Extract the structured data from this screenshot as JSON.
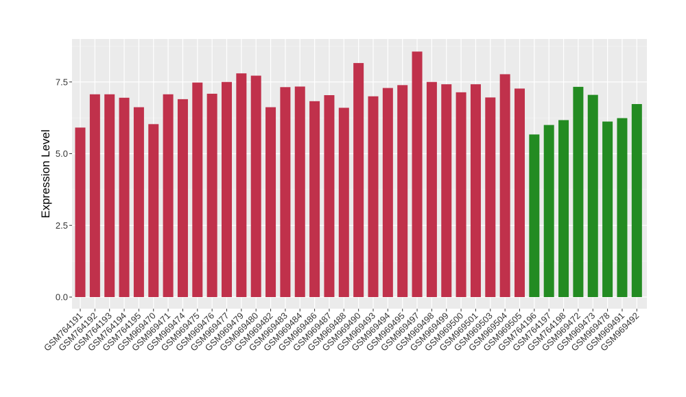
{
  "chart_data": {
    "type": "bar",
    "ylabel": "Expression Level",
    "xlabel": "",
    "ylim": [
      0,
      8.95
    ],
    "yticks": [
      0.0,
      2.5,
      5.0,
      7.5
    ],
    "ytick_labels": [
      "0.0",
      "2.5",
      "5.0",
      "7.5"
    ],
    "grid": true,
    "legend": "none",
    "colors": {
      "red": "#c0314b",
      "green": "#238b22",
      "panel": "#ebebeb",
      "grid": "#ffffff"
    },
    "categories": [
      "GSM764191",
      "GSM764192",
      "GSM764193",
      "GSM764194",
      "GSM764195",
      "GSM969470",
      "GSM969471",
      "GSM969474",
      "GSM969475",
      "GSM969476",
      "GSM969477",
      "GSM969479",
      "GSM969480",
      "GSM969482",
      "GSM969483",
      "GSM969484",
      "GSM969486",
      "GSM969487",
      "GSM969488",
      "GSM969490",
      "GSM969493",
      "GSM969494",
      "GSM969495",
      "GSM969497",
      "GSM969498",
      "GSM969499",
      "GSM969500",
      "GSM969501",
      "GSM969503",
      "GSM969504",
      "GSM969505",
      "GSM764196",
      "GSM764197",
      "GSM764198",
      "GSM969472",
      "GSM969473",
      "GSM969478",
      "GSM969491",
      "GSM969492"
    ],
    "values": [
      5.91,
      7.07,
      7.07,
      6.95,
      6.62,
      6.03,
      7.07,
      6.9,
      7.48,
      7.09,
      7.5,
      7.8,
      7.72,
      6.62,
      7.32,
      7.34,
      6.83,
      7.04,
      6.6,
      8.16,
      7.0,
      7.29,
      7.39,
      8.56,
      7.5,
      7.42,
      7.14,
      7.42,
      6.96,
      7.77,
      7.27,
      5.67,
      6.0,
      6.17,
      7.33,
      7.05,
      6.12,
      6.24,
      6.73
    ],
    "bar_colors": [
      "red",
      "red",
      "red",
      "red",
      "red",
      "red",
      "red",
      "red",
      "red",
      "red",
      "red",
      "red",
      "red",
      "red",
      "red",
      "red",
      "red",
      "red",
      "red",
      "red",
      "red",
      "red",
      "red",
      "red",
      "red",
      "red",
      "red",
      "red",
      "red",
      "red",
      "red",
      "green",
      "green",
      "green",
      "green",
      "green",
      "green",
      "green",
      "green"
    ]
  }
}
